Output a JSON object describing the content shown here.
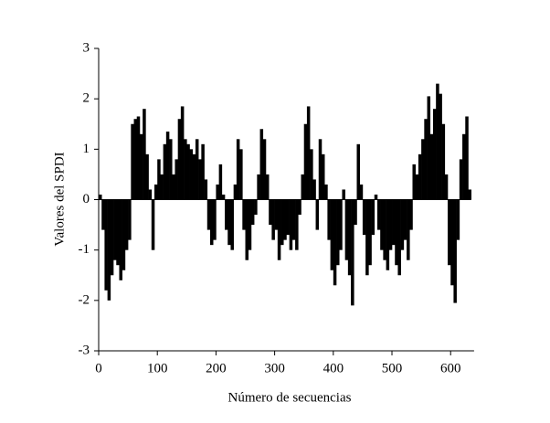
{
  "chart_data": {
    "type": "bar",
    "xlabel": "Número de secuencias",
    "ylabel": "Valores del SPDI",
    "x": [
      0,
      5,
      10,
      15,
      20,
      25,
      30,
      35,
      40,
      45,
      50,
      55,
      60,
      65,
      70,
      75,
      80,
      85,
      90,
      95,
      100,
      105,
      110,
      115,
      120,
      125,
      130,
      135,
      140,
      145,
      150,
      155,
      160,
      165,
      170,
      175,
      180,
      185,
      190,
      195,
      200,
      205,
      210,
      215,
      220,
      225,
      230,
      235,
      240,
      245,
      250,
      255,
      260,
      265,
      270,
      275,
      280,
      285,
      290,
      295,
      300,
      305,
      310,
      315,
      320,
      325,
      330,
      335,
      340,
      345,
      350,
      355,
      360,
      365,
      370,
      375,
      380,
      385,
      390,
      395,
      400,
      405,
      410,
      415,
      420,
      425,
      430,
      435,
      440,
      445,
      450,
      455,
      460,
      465,
      470,
      475,
      480,
      485,
      490,
      495,
      500,
      505,
      510,
      515,
      520,
      525,
      530,
      535,
      540,
      545,
      550,
      555,
      560,
      565,
      570,
      575,
      580,
      585,
      590,
      595,
      600,
      605,
      610,
      615,
      620,
      625,
      630
    ],
    "values": [
      0.1,
      -0.6,
      -1.8,
      -2.0,
      -1.5,
      -1.2,
      -1.3,
      -1.6,
      -1.4,
      -1.0,
      -0.8,
      1.5,
      1.6,
      1.65,
      1.3,
      1.8,
      0.9,
      0.2,
      -1.0,
      0.3,
      0.8,
      0.5,
      1.1,
      1.35,
      1.2,
      0.5,
      0.8,
      1.6,
      1.85,
      1.2,
      1.1,
      1.0,
      0.9,
      1.2,
      0.8,
      1.1,
      0.4,
      -0.6,
      -0.9,
      -0.8,
      0.3,
      0.7,
      0.1,
      -0.6,
      -0.9,
      -1.0,
      0.3,
      1.2,
      1.0,
      -0.6,
      -1.2,
      -1.0,
      -0.5,
      -0.3,
      0.5,
      1.4,
      1.2,
      0.5,
      -0.5,
      -0.8,
      -0.6,
      -1.2,
      -0.9,
      -0.8,
      -0.7,
      -1.0,
      -0.8,
      -1.0,
      -0.3,
      0.5,
      1.5,
      1.85,
      1.0,
      0.4,
      -0.6,
      1.2,
      0.9,
      0.3,
      -0.8,
      -1.4,
      -1.7,
      -1.3,
      -1.0,
      0.2,
      -1.2,
      -1.5,
      -2.1,
      -0.5,
      1.1,
      0.3,
      -0.7,
      -1.5,
      -1.3,
      -0.7,
      0.1,
      -0.6,
      -1.0,
      -1.2,
      -1.4,
      -1.0,
      -0.9,
      -1.3,
      -1.5,
      -1.0,
      -0.8,
      -1.2,
      -0.6,
      0.7,
      0.5,
      0.9,
      1.2,
      1.6,
      2.05,
      1.3,
      1.8,
      2.3,
      2.1,
      1.5,
      0.5,
      -1.3,
      -1.7,
      -2.05,
      -0.8,
      0.8,
      1.3,
      1.65,
      0.2
    ],
    "bar_width": 5,
    "color": "#000000",
    "xlim": [
      0,
      640
    ],
    "xticks": [
      0,
      100,
      200,
      300,
      400,
      500,
      600
    ],
    "ylim": [
      -3,
      3
    ],
    "yticks": [
      -3,
      -2,
      -1,
      0,
      1,
      2,
      3
    ]
  }
}
